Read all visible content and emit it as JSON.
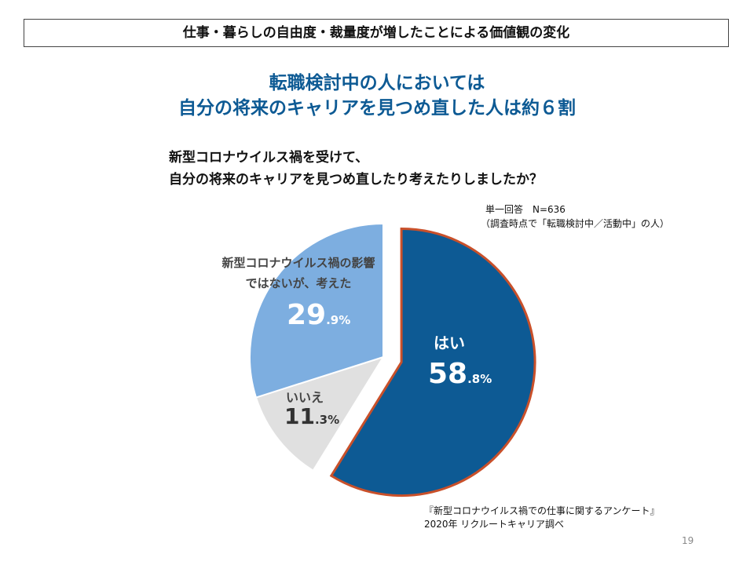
{
  "slide": {
    "header": "仕事・暮らしの自由度・裁量度が増したことによる価値観の変化",
    "headline": [
      "転職検討中の人においては",
      "自分の将来のキャリアを見つめ直した人は約６割"
    ],
    "note": [
      "単一回答　N=636",
      "（調査時点で「転職検討中／活動中」の人）"
    ],
    "source": [
      "『新型コロナウイルス禍での仕事に関するアンケート』",
      "2020年 リクルートキャリア調べ"
    ],
    "page_number": "19"
  },
  "chart_data": {
    "type": "pie",
    "title": [
      "新型コロナウイルス禍を受けて、",
      "自分の将来のキャリアを見つめ直したり考えたりしましたか？"
    ],
    "categories": [
      "はい",
      "いいえ",
      "新型コロナウイルス禍の影響ではないが、考えた"
    ],
    "values": [
      58.8,
      11.3,
      29.9
    ],
    "value_labels": [
      "58.8%",
      "11.3%",
      "29.9%"
    ],
    "colors": [
      "#0d5a94",
      "#e0e0e0",
      "#7daee0"
    ],
    "highlight_outline": "#c9502a"
  }
}
